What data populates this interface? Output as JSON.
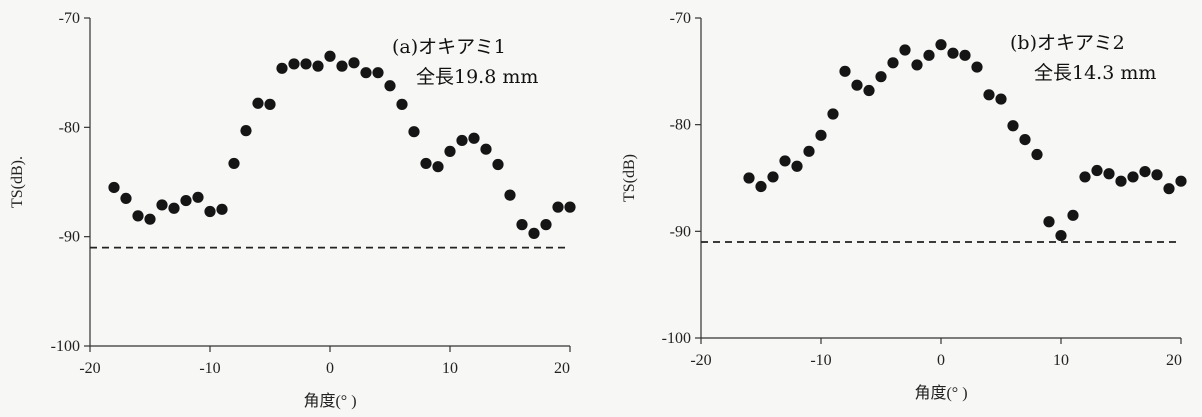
{
  "chart_data": [
    {
      "type": "scatter",
      "panel_label": "(a)オキアミ1",
      "annotation": "全長19.8 mm",
      "xlabel": "角度(°  )",
      "ylabel": "TS(dB).",
      "xlim": [
        -20,
        20
      ],
      "ylim": [
        -100,
        -70
      ],
      "xticks": [
        "-20",
        "-10",
        "0",
        "10",
        "20"
      ],
      "yticks": [
        "-70",
        "-80",
        "-90",
        "-100"
      ],
      "xtick_values": [
        -20,
        -10,
        0,
        10,
        20
      ],
      "ytick_values": [
        -70,
        -80,
        -90,
        -100
      ],
      "reference_line_y": -91,
      "grid": false,
      "series": [
        {
          "x": [
            -18,
            -17,
            -16,
            -15,
            -14,
            -13,
            -12,
            -11,
            -10,
            -9,
            -8,
            -7,
            -6,
            -5,
            -4,
            -3,
            -2,
            -1,
            0,
            1,
            2,
            3,
            4,
            5,
            6,
            7,
            8,
            9,
            10,
            11,
            12,
            13,
            14,
            15,
            16,
            17,
            18,
            19,
            20
          ],
          "y": [
            -85.5,
            -86.5,
            -88.1,
            -88.4,
            -87.1,
            -87.4,
            -86.7,
            -86.4,
            -87.7,
            -87.5,
            -83.3,
            -80.3,
            -77.8,
            -77.9,
            -74.6,
            -74.2,
            -74.2,
            -74.4,
            -73.5,
            -74.4,
            -74.1,
            -75.0,
            -75.0,
            -76.2,
            -77.9,
            -80.4,
            -83.3,
            -83.6,
            -82.2,
            -81.2,
            -81.0,
            -82.0,
            -83.4,
            -86.2,
            -88.9,
            -89.7,
            -88.9,
            -87.3,
            -87.3
          ]
        }
      ]
    },
    {
      "type": "scatter",
      "panel_label": "(b)オキアミ2",
      "annotation": "全長14.3 mm",
      "xlabel": "角度(°  )",
      "ylabel": "TS(dB)",
      "xlim": [
        -20,
        20
      ],
      "ylim": [
        -100,
        -70
      ],
      "xticks": [
        "-20",
        "-10",
        "0",
        "10",
        "20"
      ],
      "yticks": [
        "-70",
        "-80",
        "-90",
        "-100"
      ],
      "xtick_values": [
        -20,
        -10,
        0,
        10,
        20
      ],
      "ytick_values": [
        -70,
        -80,
        -90,
        -100
      ],
      "reference_line_y": -91,
      "grid": false,
      "series": [
        {
          "x": [
            -16,
            -15,
            -14,
            -13,
            -12,
            -11,
            -10,
            -9,
            -8,
            -7,
            -6,
            -5,
            -4,
            -3,
            -2,
            -1,
            0,
            1,
            2,
            3,
            4,
            5,
            6,
            7,
            8,
            9,
            10,
            11,
            12,
            13,
            14,
            15,
            16,
            17,
            18,
            19,
            20
          ],
          "y": [
            -85.0,
            -85.8,
            -84.9,
            -83.4,
            -83.9,
            -82.5,
            -81.0,
            -79.0,
            -75.0,
            -76.3,
            -76.8,
            -75.5,
            -74.2,
            -73.0,
            -74.4,
            -73.5,
            -72.5,
            -73.3,
            -73.5,
            -74.6,
            -77.2,
            -77.6,
            -80.1,
            -81.4,
            -82.8,
            -89.1,
            -90.4,
            -88.5,
            -84.9,
            -84.3,
            -84.6,
            -85.3,
            -84.9,
            -84.4,
            -84.7,
            -86.0,
            -85.3
          ]
        }
      ]
    }
  ]
}
